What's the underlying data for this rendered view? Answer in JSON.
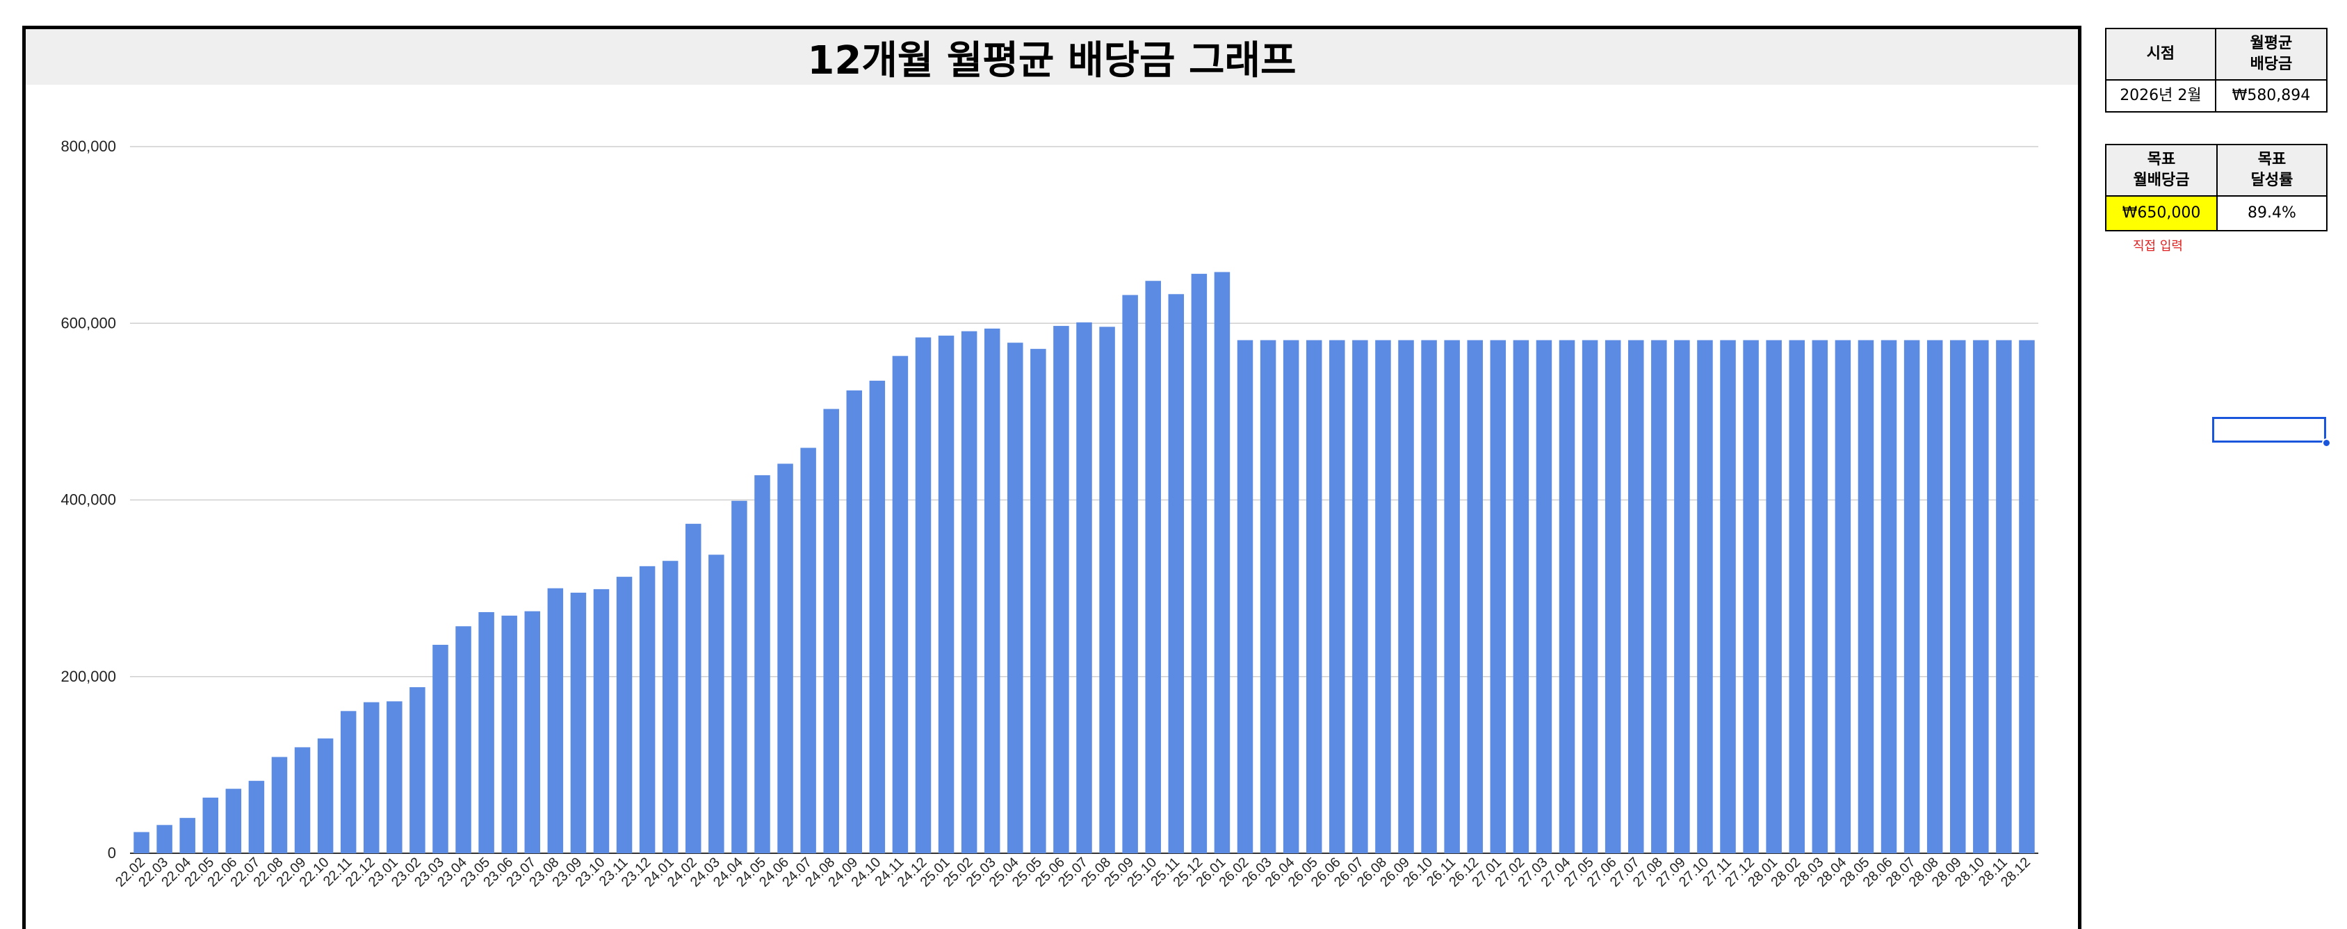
{
  "chart_data": {
    "type": "bar",
    "title": "12개월 월평균 배당금 그래프",
    "xlabel": "",
    "ylabel": "",
    "ylim": [
      0,
      800000
    ],
    "yticks": [
      "0",
      "200,000",
      "400,000",
      "600,000",
      "800,000"
    ],
    "grid": true,
    "bar_color": "#5b8be2",
    "categories": [
      "22.02",
      "22.03",
      "22.04",
      "22.05",
      "22.06",
      "22.07",
      "22.08",
      "22.09",
      "22.10",
      "22.11",
      "22.12",
      "23.01",
      "23.02",
      "23.03",
      "23.04",
      "23.05",
      "23.06",
      "23.07",
      "23.08",
      "23.09",
      "23.10",
      "23.11",
      "23.12",
      "24.01",
      "24.02",
      "24.03",
      "24.04",
      "24.05",
      "24.06",
      "24.07",
      "24.08",
      "24.09",
      "24.10",
      "24.11",
      "24.12",
      "25.01",
      "25.02",
      "25.03",
      "25.04",
      "25.05",
      "25.06",
      "25.07",
      "25.08",
      "25.09",
      "25.10",
      "25.11",
      "25.12",
      "26.01",
      "26.02",
      "26.03",
      "26.04",
      "26.05",
      "26.06",
      "26.07",
      "26.08",
      "26.09",
      "26.10",
      "26.11",
      "26.12",
      "27.01",
      "27.02",
      "27.03",
      "27.04",
      "27.05",
      "27.06",
      "27.07",
      "27.08",
      "27.09",
      "27.10",
      "27.11",
      "27.12",
      "28.01",
      "28.02",
      "28.03",
      "28.04",
      "28.05",
      "28.06",
      "28.07",
      "28.08",
      "28.09",
      "28.10",
      "28.11",
      "28.12"
    ],
    "values": [
      24000,
      32000,
      40000,
      63000,
      73000,
      82000,
      109000,
      120000,
      130000,
      161000,
      171000,
      172000,
      188000,
      236000,
      257000,
      273000,
      269000,
      274000,
      300000,
      295000,
      299000,
      313000,
      325000,
      331000,
      373000,
      338000,
      399000,
      428000,
      441000,
      459000,
      503000,
      524000,
      535000,
      563000,
      584000,
      586000,
      591000,
      594000,
      578000,
      571000,
      597000,
      601000,
      596000,
      632000,
      648000,
      633000,
      656000,
      658000,
      580894,
      580894,
      580894,
      580894,
      580894,
      580894,
      580894,
      580894,
      580894,
      580894,
      580894,
      580894,
      580894,
      580894,
      580894,
      580894,
      580894,
      580894,
      580894,
      580894,
      580894,
      580894,
      580894,
      580894,
      580894,
      580894,
      580894,
      580894,
      580894,
      580894,
      580894,
      580894,
      580894,
      580894,
      580894
    ]
  },
  "summary": {
    "time_header": "시점",
    "avg_header": "월평균\n배당금",
    "time_value": "2026년 2월",
    "avg_value": "₩580,894"
  },
  "goal": {
    "target_header": "목표\n월배당금",
    "rate_header": "목표\n달성률",
    "target_value": "₩650,000",
    "rate_value": "89.4%",
    "note": "직접 입력",
    "highlight_color": "#ffff00"
  }
}
